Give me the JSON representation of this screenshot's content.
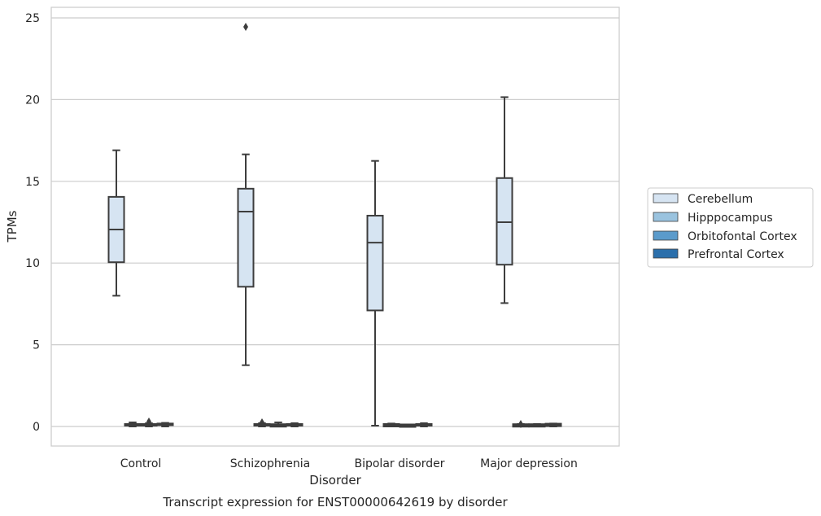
{
  "chart_data": {
    "type": "box",
    "xlabel": "Disorder",
    "ylabel": "TPMs",
    "caption": "Transcript expression for ENST00000642619 by disorder",
    "ylim": [
      -1.2,
      25.6
    ],
    "yticks": [
      0,
      5,
      10,
      15,
      20,
      25
    ],
    "grid": true,
    "legend_position": "right",
    "categories": [
      "Control",
      "Schizophrenia",
      "Bipolar disorder",
      "Major depression"
    ],
    "series": [
      {
        "name": "Cerebellum",
        "color": "#d6e4f2",
        "boxes": [
          {
            "whislo": 8.0,
            "q1": 10.05,
            "med": 12.05,
            "q3": 14.05,
            "whishi": 16.9,
            "fliers": []
          },
          {
            "whislo": 3.75,
            "q1": 8.55,
            "med": 13.15,
            "q3": 14.55,
            "whishi": 16.65,
            "fliers": [
              24.45
            ]
          },
          {
            "whislo": 0.05,
            "q1": 7.1,
            "med": 11.25,
            "q3": 12.9,
            "whishi": 16.25,
            "fliers": []
          },
          {
            "whislo": 7.55,
            "q1": 9.9,
            "med": 12.5,
            "q3": 15.2,
            "whishi": 20.15,
            "fliers": []
          }
        ]
      },
      {
        "name": "Hipppocampus",
        "color": "#9ac3df",
        "boxes": [
          {
            "whislo": 0.0,
            "q1": 0.05,
            "med": 0.1,
            "q3": 0.15,
            "whishi": 0.25,
            "fliers": []
          },
          {
            "whislo": 0.0,
            "q1": 0.05,
            "med": 0.1,
            "q3": 0.15,
            "whishi": 0.2,
            "fliers": [
              0.25
            ]
          },
          {
            "whislo": 0.0,
            "q1": 0.03,
            "med": 0.08,
            "q3": 0.12,
            "whishi": 0.18,
            "fliers": []
          },
          {
            "whislo": 0.0,
            "q1": 0.03,
            "med": 0.07,
            "q3": 0.1,
            "whishi": 0.15,
            "fliers": [
              0.15
            ]
          }
        ]
      },
      {
        "name": "Orbitofontal Cortex",
        "color": "#5b9bcb",
        "boxes": [
          {
            "whislo": 0.0,
            "q1": 0.05,
            "med": 0.1,
            "q3": 0.15,
            "whishi": 0.2,
            "fliers": [
              0.3
            ]
          },
          {
            "whislo": 0.0,
            "q1": 0.03,
            "med": 0.07,
            "q3": 0.1,
            "whishi": 0.25,
            "fliers": []
          },
          {
            "whislo": 0.0,
            "q1": 0.02,
            "med": 0.05,
            "q3": 0.08,
            "whishi": 0.12,
            "fliers": []
          },
          {
            "whislo": 0.0,
            "q1": 0.03,
            "med": 0.07,
            "q3": 0.1,
            "whishi": 0.15,
            "fliers": []
          }
        ]
      },
      {
        "name": "Prefrontal Cortex",
        "color": "#2b6fab",
        "boxes": [
          {
            "whislo": 0.0,
            "q1": 0.08,
            "med": 0.13,
            "q3": 0.18,
            "whishi": 0.22,
            "fliers": []
          },
          {
            "whislo": 0.0,
            "q1": 0.05,
            "med": 0.1,
            "q3": 0.15,
            "whishi": 0.2,
            "fliers": []
          },
          {
            "whislo": 0.0,
            "q1": 0.05,
            "med": 0.1,
            "q3": 0.15,
            "whishi": 0.2,
            "fliers": []
          },
          {
            "whislo": 0.0,
            "q1": 0.05,
            "med": 0.1,
            "q3": 0.14,
            "whishi": 0.18,
            "fliers": []
          }
        ]
      }
    ]
  },
  "colors": {
    "background": "#ffffff",
    "grid": "#cccccc",
    "frame": "#cccccc",
    "box_edge": "#3d3d3d",
    "text": "#262626"
  }
}
